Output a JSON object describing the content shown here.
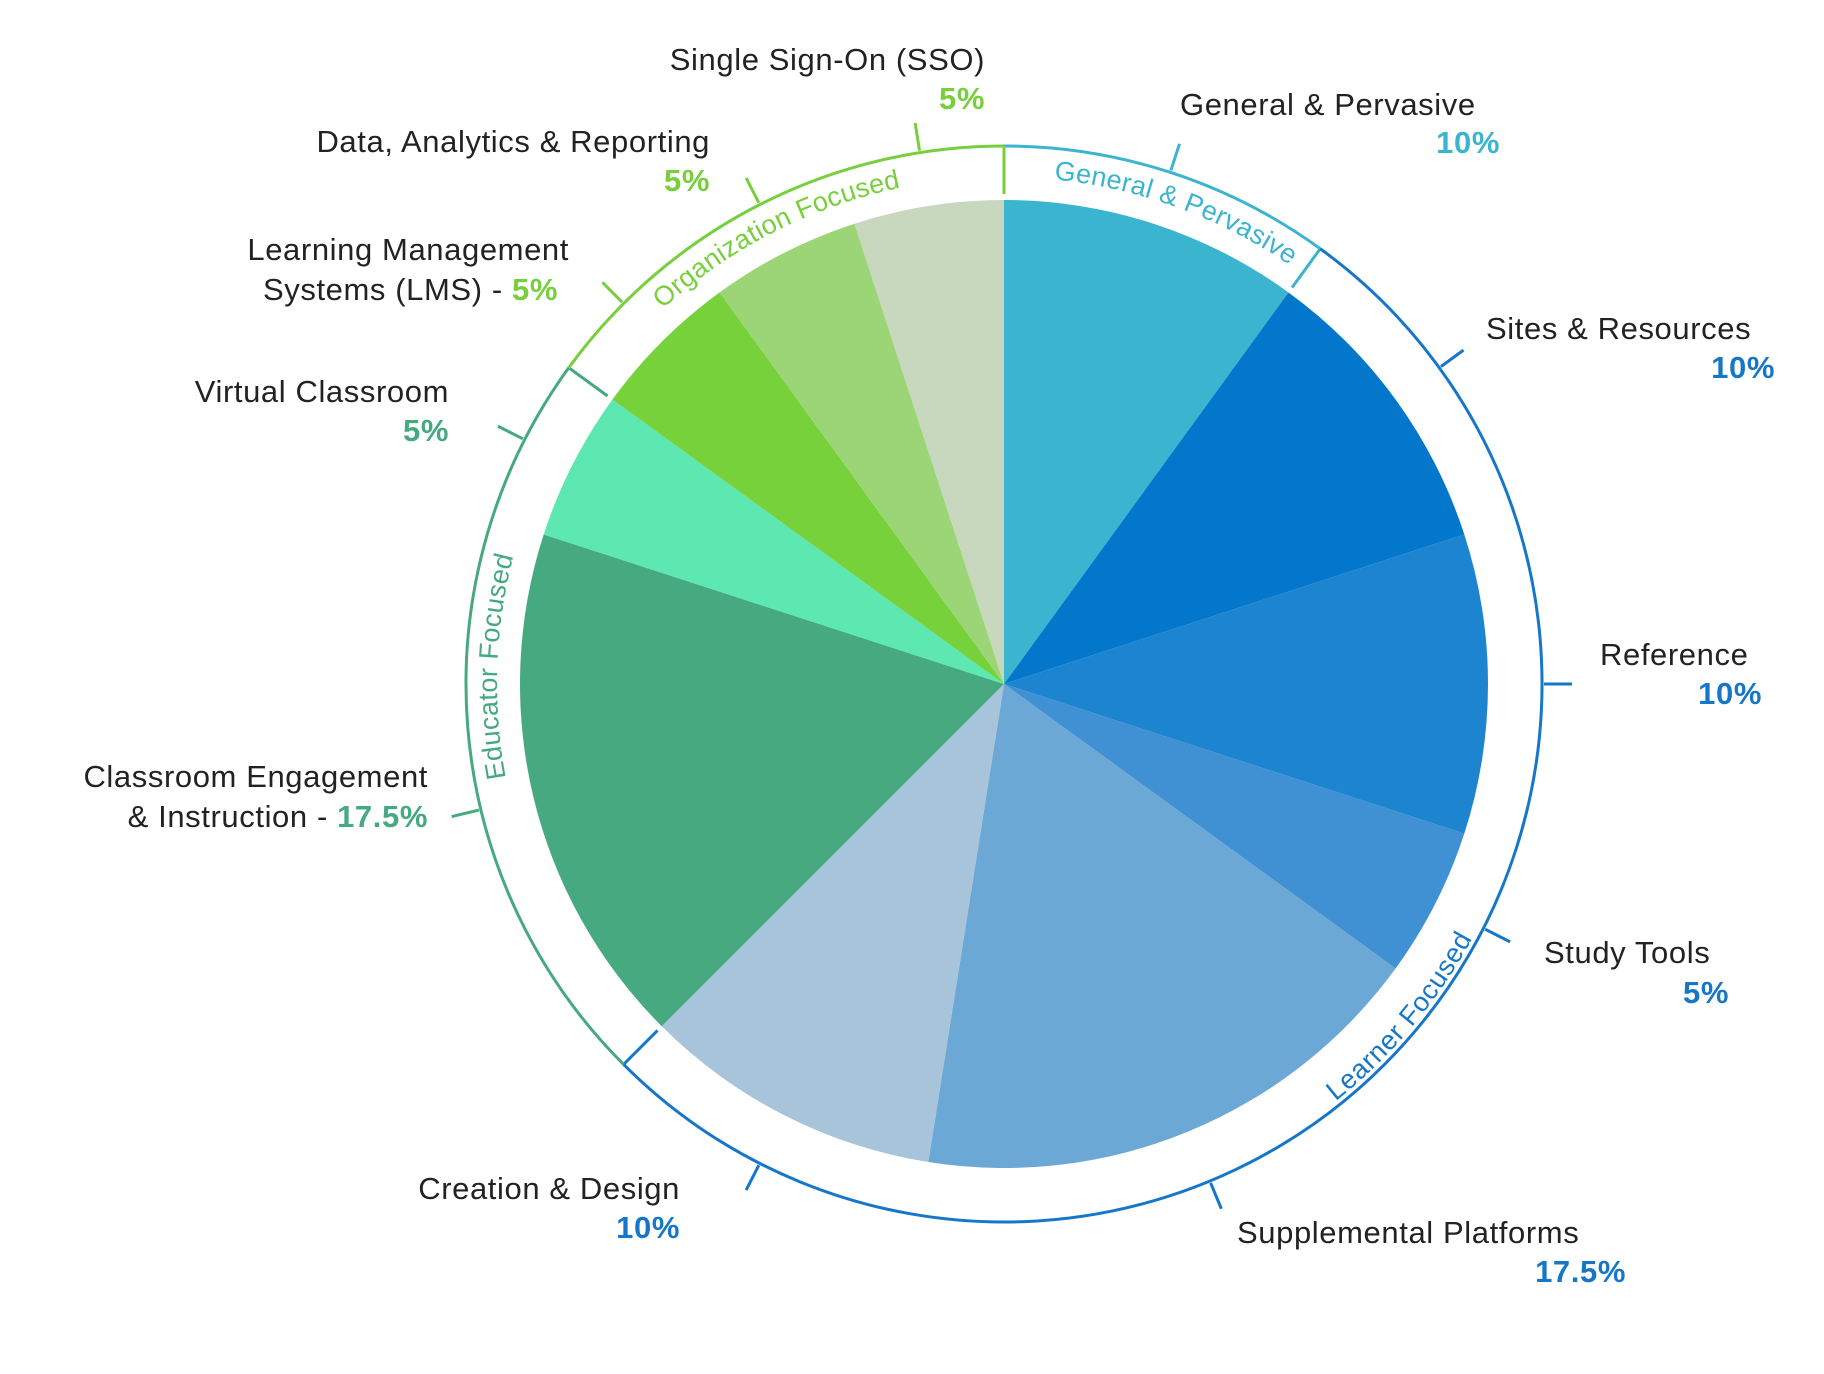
{
  "chart_data": {
    "type": "pie",
    "title": "",
    "slices": [
      {
        "label": "General & Pervasive",
        "label_lines": [
          "General & Pervasive"
        ],
        "value": 10,
        "value_label": "10%",
        "color": "#3bb4cf",
        "group": "general"
      },
      {
        "label": "Sites & Resources",
        "label_lines": [
          "Sites & Resources"
        ],
        "value": 10,
        "value_label": "10%",
        "color": "#0277cc",
        "group": "learner"
      },
      {
        "label": "Reference",
        "label_lines": [
          "Reference"
        ],
        "value": 10,
        "value_label": "10%",
        "color": "#1d84cf",
        "group": "learner"
      },
      {
        "label": "Study Tools",
        "label_lines": [
          "Study Tools"
        ],
        "value": 5,
        "value_label": "5%",
        "color": "#3f91d3",
        "group": "learner"
      },
      {
        "label": "Supplemental Platforms",
        "label_lines": [
          "Supplemental Platforms"
        ],
        "value": 17.5,
        "value_label": "17.5%",
        "color": "#6ca8d6",
        "group": "learner"
      },
      {
        "label": "Creation & Design",
        "label_lines": [
          "Creation & Design"
        ],
        "value": 10,
        "value_label": "10%",
        "color": "#a7c4da",
        "group": "learner"
      },
      {
        "label": "Classroom Engagement & Instruction",
        "label_lines": [
          "Classroom Engagement",
          "& Instruction - "
        ],
        "value": 17.5,
        "value_label": "17.5%",
        "color": "#46a980",
        "group": "educator"
      },
      {
        "label": "Virtual Classroom",
        "label_lines": [
          "Virtual Classroom"
        ],
        "value": 5,
        "value_label": "5%",
        "color": "#5de8b1",
        "group": "educator"
      },
      {
        "label": "Learning Management Systems (LMS)",
        "label_lines": [
          "Learning Management",
          "Systems (LMS) - "
        ],
        "value": 5,
        "value_label": "5%",
        "color": "#76d13b",
        "group": "organization"
      },
      {
        "label": "Data, Analytics & Reporting",
        "label_lines": [
          "Data, Analytics & Reporting"
        ],
        "value": 5,
        "value_label": "5%",
        "color": "#9cd576",
        "group": "organization"
      },
      {
        "label": "Single Sign-On (SSO)",
        "label_lines": [
          "Single Sign-On (SSO)"
        ],
        "value": 5,
        "value_label": "5%",
        "color": "#c8d8be",
        "group": "organization"
      }
    ],
    "groups": [
      {
        "id": "general",
        "label": "General & Pervasive",
        "color": "#3bb4cf"
      },
      {
        "id": "learner",
        "label": "Learner Focused",
        "color": "#1677c9"
      },
      {
        "id": "educator",
        "label": "Educator Focused",
        "color": "#46a980"
      },
      {
        "id": "organization",
        "label": "Organization Focused",
        "color": "#78cf3c"
      }
    ],
    "start_angle_deg": 0,
    "direction": "clockwise",
    "legend": "none"
  }
}
